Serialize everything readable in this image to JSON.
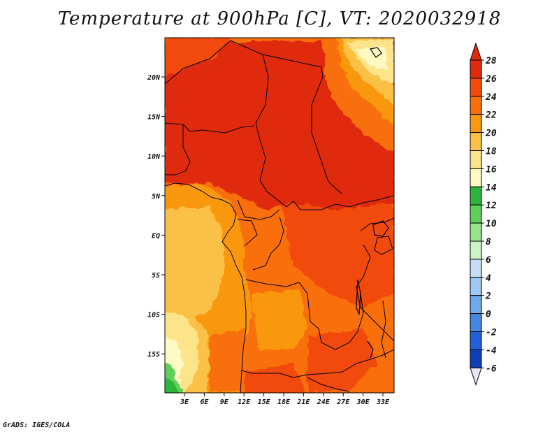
{
  "title": "Temperature at 900hPa [C], VT: 2020032918",
  "credit": "GrADS: IGES/COLA",
  "map": {
    "lon_ticks": [
      "3E",
      "6E",
      "9E",
      "12E",
      "15E",
      "18E",
      "21E",
      "24E",
      "27E",
      "30E",
      "33E"
    ],
    "lat_ticks": [
      "20N",
      "15N",
      "10N",
      "5N",
      "EQ",
      "5S",
      "10S",
      "15S"
    ]
  },
  "colorbar": {
    "labels": [
      "28",
      "26",
      "24",
      "22",
      "20",
      "18",
      "16",
      "14",
      "12",
      "10",
      "8",
      "6",
      "4",
      "2",
      "0",
      "-2",
      "-4",
      "-6"
    ],
    "colors": [
      "#e02a0e",
      "#f24a0a",
      "#f86f0c",
      "#fa980f",
      "#fbc146",
      "#fde48a",
      "#fff9c4",
      "#2db63c",
      "#5ed05a",
      "#96e48e",
      "#cdf4c5",
      "#c5def5",
      "#9dc9f2",
      "#6ea9ec",
      "#4486e2",
      "#2060d8",
      "#0f3fb8",
      "#06238c",
      "#030f5a"
    ],
    "over_color": "#e02a0e",
    "under_color": "#e6e6fa"
  }
}
